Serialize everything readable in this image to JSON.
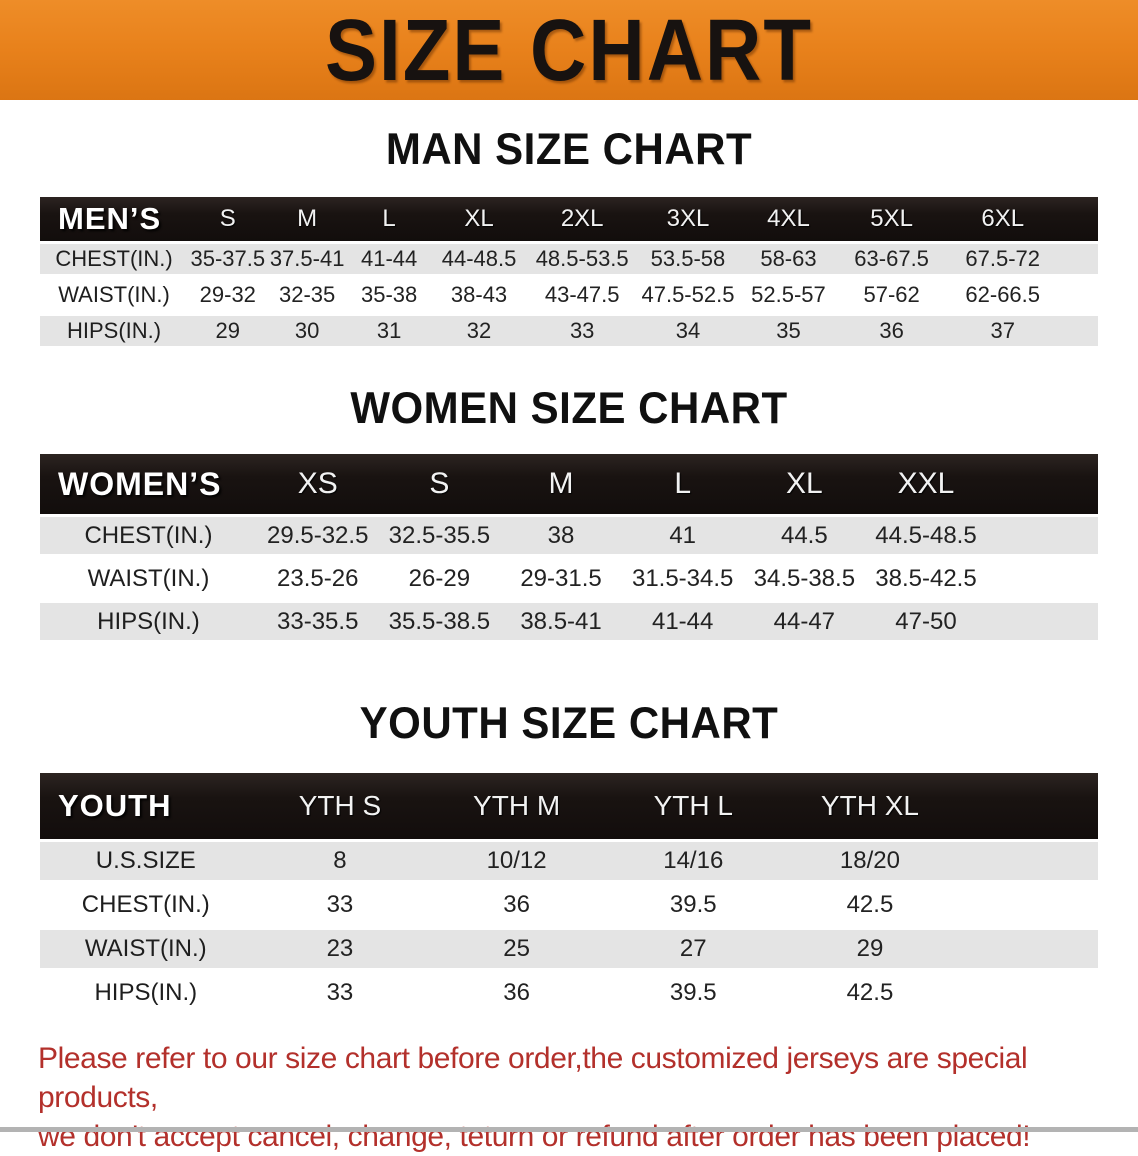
{
  "banner": {
    "title": "SIZE CHART"
  },
  "sections": [
    {
      "title": "MAN SIZE CHART",
      "group_label": "MEN’S",
      "columns": [
        "S",
        "M",
        "L",
        "XL",
        "2XL",
        "3XL",
        "4XL",
        "5XL",
        "6XL"
      ],
      "rows": [
        {
          "label": "CHEST(IN.)",
          "values": [
            "35-37.5",
            "37.5-41",
            "41-44",
            "44-48.5",
            "48.5-53.5",
            "53.5-58",
            "58-63",
            "63-67.5",
            "67.5-72"
          ]
        },
        {
          "label": "WAIST(IN.)",
          "values": [
            "29-32",
            "32-35",
            "35-38",
            "38-43",
            "43-47.5",
            "47.5-52.5",
            "52.5-57",
            "57-62",
            "62-66.5"
          ]
        },
        {
          "label": "HIPS(IN.)",
          "values": [
            "29",
            "30",
            "31",
            "32",
            "33",
            "34",
            "35",
            "36",
            "37"
          ]
        }
      ]
    },
    {
      "title": "WOMEN SIZE CHART",
      "group_label": "WOMEN’S",
      "columns": [
        "XS",
        "S",
        "M",
        "L",
        "XL",
        "XXL"
      ],
      "rows": [
        {
          "label": "CHEST(IN.)",
          "values": [
            "29.5-32.5",
            "32.5-35.5",
            "38",
            "41",
            "44.5",
            "44.5-48.5"
          ]
        },
        {
          "label": "WAIST(IN.)",
          "values": [
            "23.5-26",
            "26-29",
            "29-31.5",
            "31.5-34.5",
            "34.5-38.5",
            "38.5-42.5"
          ]
        },
        {
          "label": "HIPS(IN.)",
          "values": [
            "33-35.5",
            "35.5-38.5",
            "38.5-41",
            "41-44",
            "44-47",
            "47-50"
          ]
        }
      ]
    },
    {
      "title": "YOUTH SIZE CHART",
      "group_label": "YOUTH",
      "columns": [
        "YTH S",
        "YTH M",
        "YTH L",
        "YTH XL"
      ],
      "rows": [
        {
          "label": "U.S.SIZE",
          "values": [
            "8",
            "10/12",
            "14/16",
            "18/20"
          ]
        },
        {
          "label": "CHEST(IN.)",
          "values": [
            "33",
            "36",
            "39.5",
            "42.5"
          ]
        },
        {
          "label": "WAIST(IN.)",
          "values": [
            "23",
            "25",
            "27",
            "29"
          ]
        },
        {
          "label": "HIPS(IN.)",
          "values": [
            "33",
            "36",
            "39.5",
            "42.5"
          ]
        }
      ]
    }
  ],
  "footer": {
    "line1": "Please refer to our size chart before order,the customized jerseys are special products,",
    "line2": "we don't accept cancel, change, teturn or refund after order has been placed!"
  },
  "colors": {
    "banner_bg": "#E8811B",
    "banner_text": "#171210",
    "header_bar": "#191311",
    "stripe_gray": "#E4E4E4",
    "footer_text": "#B3302B"
  }
}
